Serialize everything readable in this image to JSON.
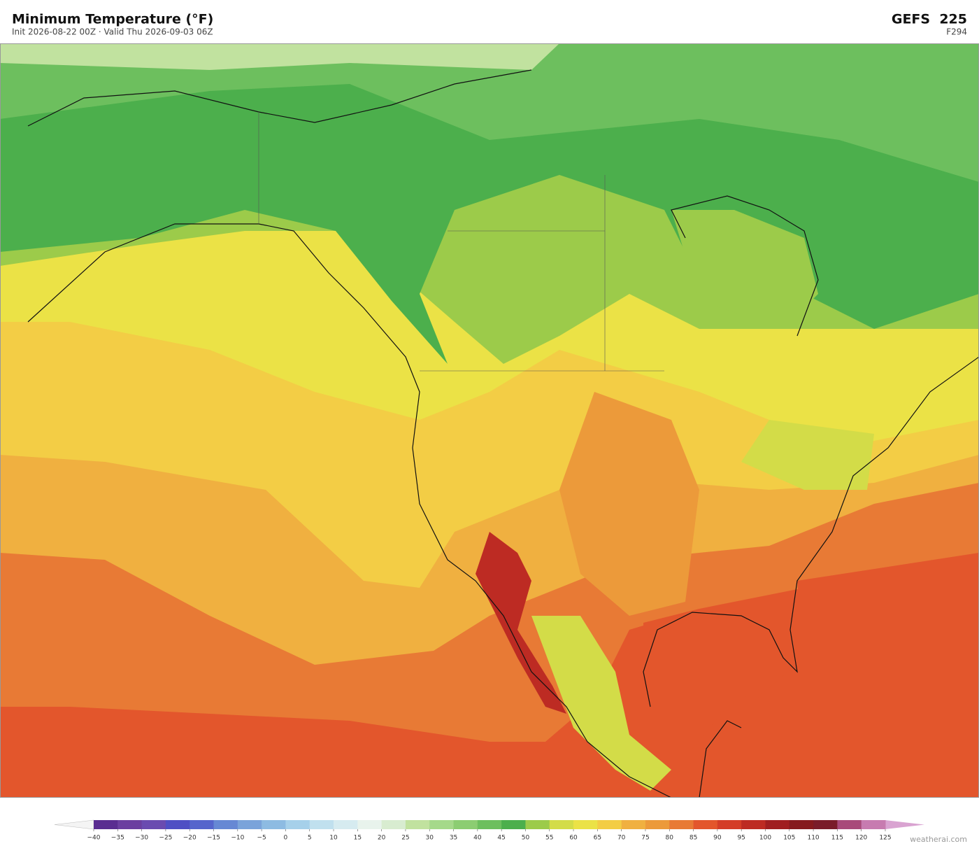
{
  "header": {
    "title": "Minimum Temperature  (°F)",
    "subtitle": "Init 2026-08-22 00Z  ·  Valid Thu 2026-09-03 06Z",
    "model": "GEFS  225",
    "forecast_hour": "F294"
  },
  "colorbar": {
    "ticks": [
      {
        "value": -40,
        "label": "−40"
      },
      {
        "value": -35,
        "label": "−35"
      },
      {
        "value": -30,
        "label": "−30"
      },
      {
        "value": -25,
        "label": "−25"
      },
      {
        "value": -20,
        "label": "−20"
      },
      {
        "value": -15,
        "label": "−15"
      },
      {
        "value": -10,
        "label": "−10"
      },
      {
        "value": -5,
        "label": "−5"
      },
      0,
      5,
      10,
      15,
      20,
      25,
      30,
      35,
      40,
      45,
      50,
      55,
      60,
      65,
      70,
      75,
      80,
      85,
      90,
      95,
      100,
      105,
      110,
      115,
      120,
      125
    ],
    "colors": [
      "#5a2d91",
      "#6b3fa0",
      "#6a4bb0",
      "#4f4fc4",
      "#5565cc",
      "#6688d4",
      "#7aa3da",
      "#8dbbe2",
      "#a6d0ea",
      "#c0e0ee",
      "#d6ebf0",
      "#e8f3ec",
      "#d8ecd0",
      "#c1e29f",
      "#a5d98a",
      "#8ccd72",
      "#6dbf5e",
      "#4caf4c",
      "#9ccb4a",
      "#d3dc48",
      "#ebe246",
      "#f3cd45",
      "#f0b040",
      "#ec9a3a",
      "#e87a35",
      "#e3562c",
      "#d43d27",
      "#bd2b23",
      "#a01e20",
      "#861a1e",
      "#7a1c2a",
      "#a84a7a",
      "#c77bb0"
    ],
    "under_color": "#f4f4f4",
    "over_color": "#d9a3d1"
  },
  "watermark": "weatherai.com"
}
